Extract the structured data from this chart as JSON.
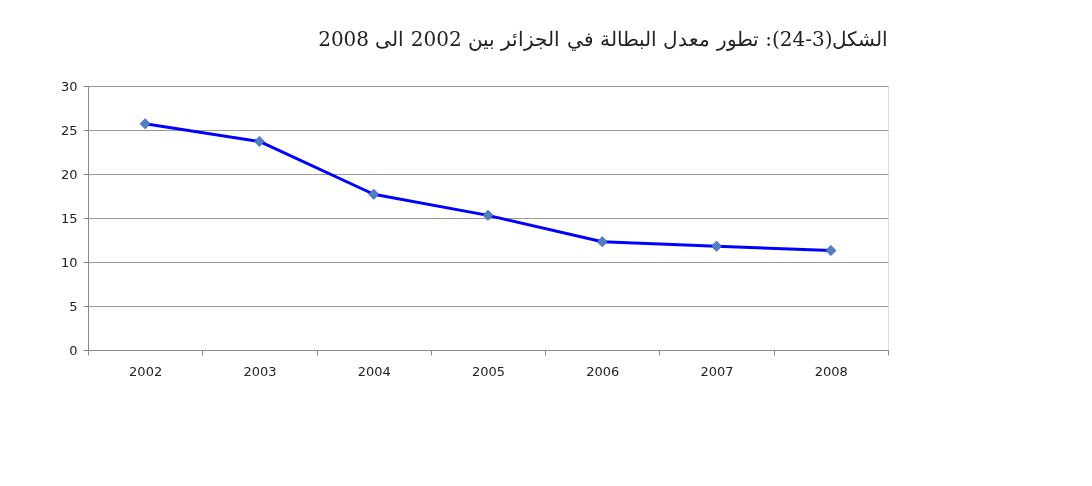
{
  "chart_data": {
    "type": "line",
    "title": "الشكل(3-24): تطور معدل البطالة في الجزائر بين 2002 الى 2008",
    "categories": [
      "2002",
      "2003",
      "2004",
      "2005",
      "2006",
      "2007",
      "2008"
    ],
    "series": [
      {
        "color": "#0000ff",
        "values": [
          25.7,
          23.7,
          17.7,
          15.3,
          12.3,
          11.8,
          11.3
        ]
      }
    ],
    "marker": "diamond",
    "line_style": "solid",
    "ylim": [
      0,
      30
    ],
    "yticks": [
      0,
      5,
      10,
      15,
      20,
      25,
      30
    ],
    "grid": "y"
  }
}
